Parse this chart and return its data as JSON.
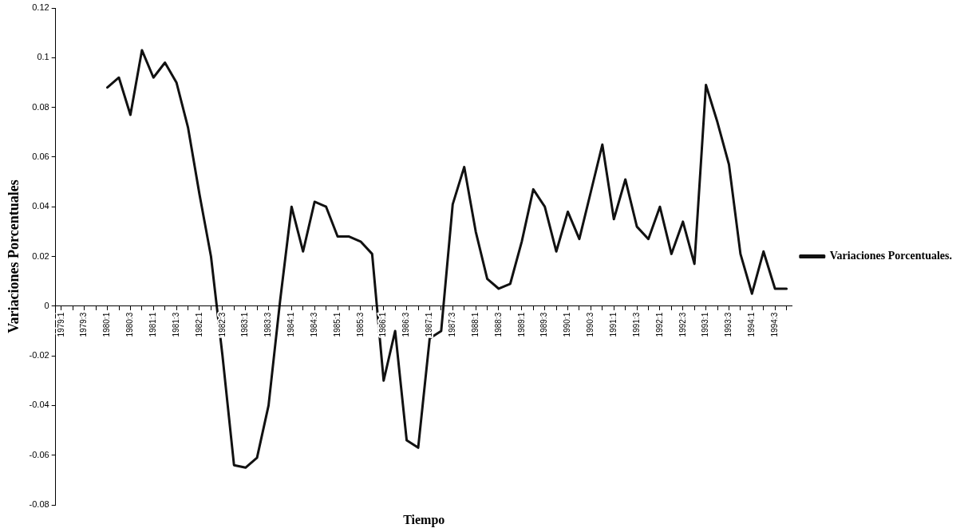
{
  "chart_data": {
    "type": "line",
    "xlabel": "Tiempo",
    "ylabel": "Variaciones Porcentuales",
    "legend": "right",
    "grid": false,
    "marker": "none",
    "line_style": "solid",
    "categories": [
      "1979:1",
      null,
      "1979:3",
      null,
      "1980:1",
      null,
      "1980:3",
      null,
      "1981:1",
      null,
      "1981:3",
      null,
      "1982:1",
      null,
      "1982:3",
      null,
      "1983:1",
      null,
      "1983:3",
      null,
      "1984:1",
      null,
      "1984:3",
      null,
      "1985:1",
      null,
      "1985:3",
      null,
      "1986:1",
      null,
      "1986:3",
      null,
      "1987:1",
      null,
      "1987:3",
      null,
      "1988:1",
      null,
      "1988:3",
      null,
      "1989:1",
      null,
      "1989:3",
      null,
      "1990:1",
      null,
      "1990:3",
      null,
      "1991:1",
      null,
      "1991:3",
      null,
      "1992:1",
      null,
      "1992:3",
      null,
      "1993:1",
      null,
      "1993:3",
      null,
      "1994:1",
      null,
      "1994:3",
      null
    ],
    "ylim": [
      -0.08,
      0.12
    ],
    "yticks": [
      -0.08,
      -0.06,
      -0.04,
      -0.02,
      0,
      0.02,
      0.04,
      0.06,
      0.08,
      0.1,
      0.12
    ],
    "series": [
      {
        "name": "Variaciones Porcentuales.",
        "color": "#111111",
        "values": [
          null,
          null,
          null,
          null,
          0.088,
          0.092,
          0.077,
          0.103,
          0.092,
          0.098,
          0.09,
          0.072,
          0.045,
          0.02,
          -0.02,
          -0.064,
          -0.065,
          -0.061,
          -0.04,
          0.002,
          0.04,
          0.022,
          0.042,
          0.04,
          0.028,
          0.028,
          0.026,
          0.021,
          -0.03,
          -0.01,
          -0.054,
          -0.057,
          -0.013,
          -0.01,
          0.041,
          0.056,
          0.03,
          0.011,
          0.007,
          0.009,
          0.026,
          0.047,
          0.04,
          0.022,
          0.038,
          0.027,
          0.046,
          0.065,
          0.035,
          0.051,
          0.032,
          0.027,
          0.04,
          0.021,
          0.034,
          0.017,
          0.089,
          0.074,
          0.057,
          0.021,
          0.005,
          0.022,
          0.007,
          0.007
        ]
      }
    ]
  }
}
